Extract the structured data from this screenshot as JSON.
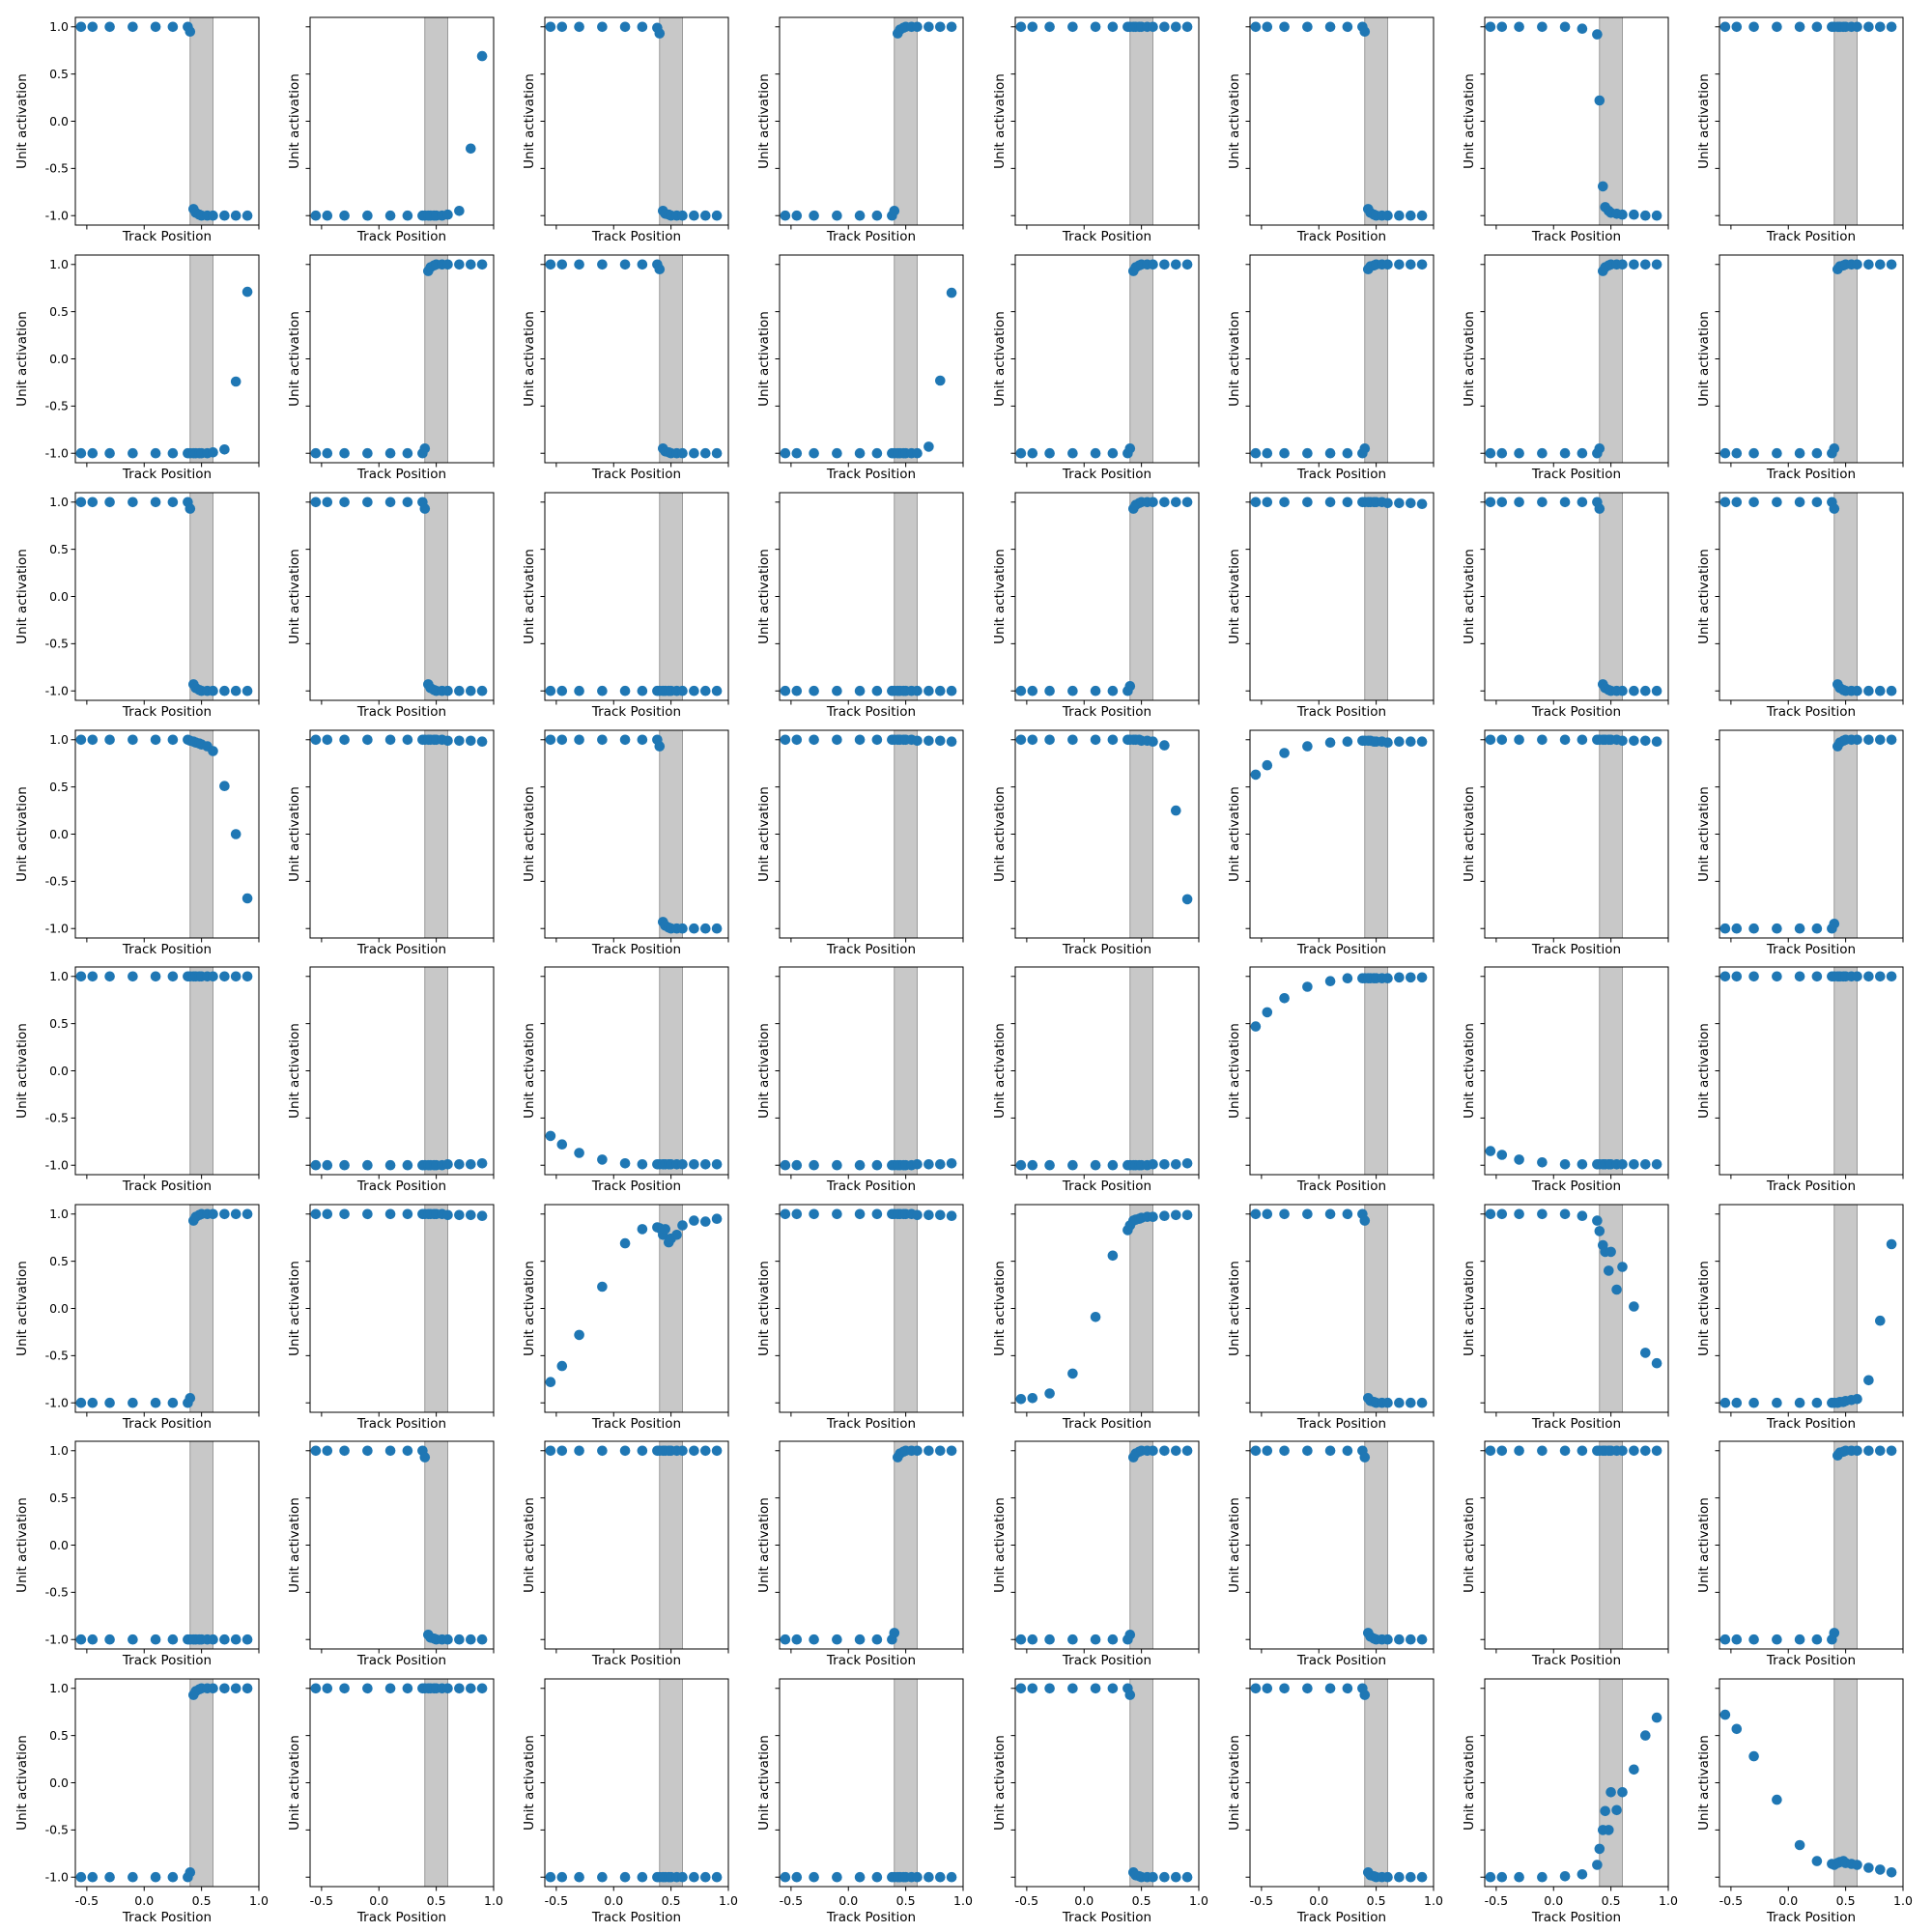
{
  "figure": {
    "rows": 8,
    "cols": 8,
    "sharex": true,
    "sharey": true,
    "marker_color": "#1f77b4",
    "band_color": "#c8c8c8"
  },
  "chart_data": {
    "type": "scatter",
    "xlabel": "Track Position",
    "ylabel": "Unit activation",
    "xlim": [
      -0.6,
      1.0
    ],
    "ylim": [
      -1.1,
      1.1
    ],
    "xticks": [
      -0.5,
      0.0,
      0.5,
      1.0
    ],
    "xtick_labels": [
      "-0.5",
      "0.0",
      "0.5",
      "1.0"
    ],
    "yticks": [
      -1.0,
      -0.5,
      0.0,
      0.5,
      1.0
    ],
    "ytick_labels": [
      "-1.0",
      "-0.5",
      "0.0",
      "0.5",
      "1.0"
    ],
    "shaded_band": [
      0.4,
      0.6
    ],
    "x": [
      -0.55,
      -0.45,
      -0.3,
      -0.1,
      0.1,
      0.25,
      0.38,
      0.4,
      0.43,
      0.45,
      0.48,
      0.5,
      0.55,
      0.6,
      0.7,
      0.8,
      0.9
    ],
    "panels": [
      {
        "y": [
          1,
          1,
          1,
          1,
          1,
          1,
          1,
          0.95,
          -0.93,
          -0.97,
          -0.99,
          -1,
          -1,
          -1,
          -1,
          -1,
          -1
        ]
      },
      {
        "y": [
          -1,
          -1,
          -1,
          -1,
          -1,
          -1,
          -1,
          -1,
          -1,
          -1,
          -1,
          -1,
          -1,
          -0.99,
          -0.95,
          -0.29,
          0.69
        ]
      },
      {
        "y": [
          1,
          1,
          1,
          1,
          1,
          1,
          0.99,
          0.93,
          -0.95,
          -0.98,
          -0.99,
          -1,
          -1,
          -1,
          -1,
          -1,
          -1
        ]
      },
      {
        "y": [
          -1,
          -1,
          -1,
          -1,
          -1,
          -1,
          -1,
          -0.95,
          0.93,
          0.97,
          0.99,
          1,
          1,
          1,
          1,
          1,
          1
        ]
      },
      {
        "y": [
          1,
          1,
          1,
          1,
          1,
          1,
          1,
          1,
          1,
          1,
          1,
          1,
          1,
          1,
          1,
          1,
          1
        ]
      },
      {
        "y": [
          1,
          1,
          1,
          1,
          1,
          1,
          1,
          0.95,
          -0.93,
          -0.97,
          -0.99,
          -1,
          -1,
          -1,
          -1,
          -1,
          -1
        ]
      },
      {
        "y": [
          1,
          1,
          1,
          1,
          1,
          0.98,
          0.92,
          0.22,
          -0.69,
          -0.91,
          -0.95,
          -0.97,
          -0.98,
          -0.99,
          -0.99,
          -1,
          -1
        ]
      },
      {
        "y": [
          1,
          1,
          1,
          1,
          1,
          1,
          1,
          1,
          1,
          1,
          1,
          1,
          1,
          1,
          1,
          1,
          1
        ]
      },
      {
        "y": [
          -1,
          -1,
          -1,
          -1,
          -1,
          -1,
          -1,
          -1,
          -1,
          -1,
          -1,
          -1,
          -1,
          -0.99,
          -0.96,
          -0.24,
          0.71
        ]
      },
      {
        "y": [
          -1,
          -1,
          -1,
          -1,
          -1,
          -1,
          -1,
          -0.95,
          0.93,
          0.97,
          0.99,
          1,
          1,
          1,
          1,
          1,
          1
        ]
      },
      {
        "y": [
          1,
          1,
          1,
          1,
          1,
          1,
          1,
          0.95,
          -0.95,
          -0.98,
          -0.99,
          -1,
          -1,
          -1,
          -1,
          -1,
          -1
        ]
      },
      {
        "y": [
          -1,
          -1,
          -1,
          -1,
          -1,
          -1,
          -1,
          -1,
          -1,
          -1,
          -1,
          -1,
          -1,
          -1,
          -0.93,
          -0.23,
          0.7
        ]
      },
      {
        "y": [
          -1,
          -1,
          -1,
          -1,
          -1,
          -1,
          -1,
          -0.95,
          0.93,
          0.97,
          0.99,
          1,
          1,
          1,
          1,
          1,
          1
        ]
      },
      {
        "y": [
          -1,
          -1,
          -1,
          -1,
          -1,
          -1,
          -1,
          -0.95,
          0.95,
          0.98,
          0.99,
          1,
          1,
          1,
          1,
          1,
          1
        ]
      },
      {
        "y": [
          -1,
          -1,
          -1,
          -1,
          -1,
          -1,
          -1,
          -0.95,
          0.93,
          0.97,
          0.99,
          1,
          1,
          1,
          1,
          1,
          1
        ]
      },
      {
        "y": [
          -1,
          -1,
          -1,
          -1,
          -1,
          -1,
          -1,
          -0.95,
          0.95,
          0.98,
          0.99,
          1,
          1,
          1,
          1,
          1,
          1
        ]
      },
      {
        "y": [
          1,
          1,
          1,
          1,
          1,
          1,
          1,
          0.93,
          -0.93,
          -0.97,
          -0.99,
          -1,
          -1,
          -1,
          -1,
          -1,
          -1
        ]
      },
      {
        "y": [
          1,
          1,
          1,
          1,
          1,
          1,
          1,
          0.93,
          -0.93,
          -0.97,
          -0.99,
          -1,
          -1,
          -1,
          -1,
          -1,
          -1
        ]
      },
      {
        "y": [
          -1,
          -1,
          -1,
          -1,
          -1,
          -1,
          -1,
          -1,
          -1,
          -1,
          -1,
          -1,
          -1,
          -1,
          -1,
          -1,
          -1
        ]
      },
      {
        "y": [
          -1,
          -1,
          -1,
          -1,
          -1,
          -1,
          -1,
          -1,
          -1,
          -1,
          -1,
          -1,
          -1,
          -1,
          -1,
          -1,
          -1
        ]
      },
      {
        "y": [
          -1,
          -1,
          -1,
          -1,
          -1,
          -1,
          -1,
          -0.95,
          0.93,
          0.97,
          0.99,
          1,
          1,
          1,
          1,
          1,
          1
        ]
      },
      {
        "y": [
          1,
          1,
          1,
          1,
          1,
          1,
          1,
          1,
          1,
          1,
          1,
          1,
          1,
          0.99,
          0.99,
          0.99,
          0.98
        ]
      },
      {
        "y": [
          1,
          1,
          1,
          1,
          1,
          1,
          1,
          0.93,
          -0.93,
          -0.97,
          -0.99,
          -1,
          -1,
          -1,
          -1,
          -1,
          -1
        ]
      },
      {
        "y": [
          1,
          1,
          1,
          1,
          1,
          1,
          1,
          0.93,
          -0.93,
          -0.97,
          -0.99,
          -1,
          -1,
          -1,
          -1,
          -1,
          -1
        ]
      },
      {
        "y": [
          1,
          1,
          1,
          1,
          1,
          1,
          1,
          0.99,
          0.98,
          0.97,
          0.96,
          0.95,
          0.93,
          0.88,
          0.51,
          0.0,
          -0.68
        ]
      },
      {
        "y": [
          1,
          1,
          1,
          1,
          1,
          1,
          1,
          1,
          1,
          1,
          1,
          1,
          1,
          0.99,
          0.99,
          0.99,
          0.98
        ]
      },
      {
        "y": [
          1,
          1,
          1,
          1,
          1,
          1,
          1,
          0.93,
          -0.93,
          -0.97,
          -0.99,
          -1,
          -1,
          -1,
          -1,
          -1,
          -1
        ]
      },
      {
        "y": [
          1,
          1,
          1,
          1,
          1,
          1,
          1,
          1,
          1,
          1,
          1,
          1,
          1,
          0.99,
          0.99,
          0.99,
          0.98
        ]
      },
      {
        "y": [
          1,
          1,
          1,
          1,
          1,
          1,
          1,
          1,
          1,
          1,
          1,
          0.99,
          0.99,
          0.98,
          0.94,
          0.25,
          -0.69
        ]
      },
      {
        "y": [
          0.63,
          0.73,
          0.86,
          0.93,
          0.97,
          0.98,
          0.99,
          0.99,
          0.99,
          0.99,
          0.98,
          0.98,
          0.98,
          0.97,
          0.98,
          0.98,
          0.98
        ]
      },
      {
        "y": [
          1,
          1,
          1,
          1,
          1,
          1,
          1,
          1,
          1,
          1,
          1,
          1,
          1,
          0.99,
          0.99,
          0.99,
          0.98
        ]
      },
      {
        "y": [
          -1,
          -1,
          -1,
          -1,
          -1,
          -1,
          -1,
          -0.95,
          0.93,
          0.97,
          0.99,
          1,
          1,
          1,
          1,
          1,
          1
        ]
      },
      {
        "y": [
          1,
          1,
          1,
          1,
          1,
          1,
          1,
          1,
          1,
          1,
          1,
          1,
          1,
          1,
          1,
          1,
          1
        ]
      },
      {
        "y": [
          -1,
          -1,
          -1,
          -1,
          -1,
          -1,
          -1,
          -1,
          -1,
          -1,
          -1,
          -1,
          -1,
          -0.99,
          -0.99,
          -0.99,
          -0.98
        ]
      },
      {
        "y": [
          -0.69,
          -0.78,
          -0.87,
          -0.94,
          -0.98,
          -0.99,
          -0.99,
          -0.99,
          -0.99,
          -0.99,
          -0.99,
          -0.99,
          -0.99,
          -0.99,
          -0.99,
          -0.99,
          -0.99
        ]
      },
      {
        "y": [
          -1,
          -1,
          -1,
          -1,
          -1,
          -1,
          -1,
          -1,
          -1,
          -1,
          -1,
          -1,
          -1,
          -0.99,
          -0.99,
          -0.99,
          -0.98
        ]
      },
      {
        "y": [
          -1,
          -1,
          -1,
          -1,
          -1,
          -1,
          -1,
          -1,
          -1,
          -1,
          -1,
          -1,
          -1,
          -0.99,
          -0.99,
          -0.99,
          -0.98
        ]
      },
      {
        "y": [
          0.47,
          0.62,
          0.77,
          0.89,
          0.95,
          0.98,
          0.98,
          0.98,
          0.98,
          0.98,
          0.98,
          0.98,
          0.98,
          0.98,
          0.99,
          0.99,
          0.99
        ]
      },
      {
        "y": [
          -0.85,
          -0.89,
          -0.94,
          -0.97,
          -0.99,
          -0.99,
          -0.99,
          -0.99,
          -0.99,
          -0.99,
          -0.99,
          -0.99,
          -0.99,
          -0.99,
          -0.99,
          -0.99,
          -0.99
        ]
      },
      {
        "y": [
          1,
          1,
          1,
          1,
          1,
          1,
          1,
          1,
          1,
          1,
          1,
          1,
          1,
          1,
          1,
          1,
          1
        ]
      },
      {
        "y": [
          -1,
          -1,
          -1,
          -1,
          -1,
          -1,
          -1,
          -0.95,
          0.93,
          0.97,
          0.99,
          1,
          1,
          1,
          1,
          1,
          1
        ]
      },
      {
        "y": [
          1,
          1,
          1,
          1,
          1,
          1,
          1,
          1,
          1,
          1,
          1,
          1,
          1,
          0.99,
          0.99,
          0.99,
          0.98
        ]
      },
      {
        "y": [
          -0.78,
          -0.61,
          -0.28,
          0.23,
          0.69,
          0.84,
          0.86,
          0.85,
          0.78,
          0.84,
          0.7,
          0.74,
          0.78,
          0.88,
          0.93,
          0.92,
          0.95
        ]
      },
      {
        "y": [
          1,
          1,
          1,
          1,
          1,
          1,
          1,
          1,
          1,
          1,
          1,
          1,
          1,
          0.99,
          0.99,
          0.99,
          0.98
        ]
      },
      {
        "y": [
          -0.96,
          -0.95,
          -0.9,
          -0.69,
          -0.09,
          0.56,
          0.83,
          0.88,
          0.93,
          0.94,
          0.95,
          0.96,
          0.97,
          0.97,
          0.98,
          0.99,
          0.99
        ]
      },
      {
        "y": [
          1,
          1,
          1,
          1,
          1,
          1,
          1,
          0.93,
          -0.95,
          -0.98,
          -0.99,
          -1,
          -1,
          -1,
          -1,
          -1,
          -1
        ]
      },
      {
        "y": [
          1,
          1,
          1,
          1,
          1,
          0.98,
          0.93,
          0.82,
          0.67,
          0.6,
          0.4,
          0.6,
          0.2,
          0.44,
          0.02,
          -0.47,
          -0.58
        ]
      },
      {
        "y": [
          -1,
          -1,
          -1,
          -1,
          -1,
          -1,
          -1,
          -1,
          -1,
          -0.99,
          -0.99,
          -0.98,
          -0.97,
          -0.96,
          -0.76,
          -0.13,
          0.68
        ]
      },
      {
        "y": [
          -1,
          -1,
          -1,
          -1,
          -1,
          -1,
          -1,
          -1,
          -1,
          -1,
          -1,
          -1,
          -1,
          -1,
          -1,
          -1,
          -1
        ]
      },
      {
        "y": [
          1,
          1,
          1,
          1,
          1,
          1,
          1,
          0.93,
          -0.95,
          -0.98,
          -0.99,
          -1,
          -1,
          -1,
          -1,
          -1,
          -1
        ]
      },
      {
        "y": [
          1,
          1,
          1,
          1,
          1,
          1,
          1,
          1,
          1,
          1,
          1,
          1,
          1,
          1,
          1,
          1,
          1
        ]
      },
      {
        "y": [
          -1,
          -1,
          -1,
          -1,
          -1,
          -1,
          -1,
          -0.93,
          0.93,
          0.97,
          0.99,
          1,
          1,
          1,
          1,
          1,
          1
        ]
      },
      {
        "y": [
          -1,
          -1,
          -1,
          -1,
          -1,
          -1,
          -1,
          -0.95,
          0.93,
          0.97,
          0.99,
          1,
          1,
          1,
          1,
          1,
          1
        ]
      },
      {
        "y": [
          1,
          1,
          1,
          1,
          1,
          1,
          1,
          0.93,
          -0.93,
          -0.97,
          -0.99,
          -1,
          -1,
          -1,
          -1,
          -1,
          -1
        ]
      },
      {
        "y": [
          1,
          1,
          1,
          1,
          1,
          1,
          1,
          1,
          1,
          1,
          1,
          1,
          1,
          1,
          1,
          1,
          1
        ]
      },
      {
        "y": [
          -1,
          -1,
          -1,
          -1,
          -1,
          -1,
          -1,
          -0.93,
          0.95,
          0.98,
          0.99,
          1,
          1,
          1,
          1,
          1,
          1
        ]
      },
      {
        "y": [
          -1,
          -1,
          -1,
          -1,
          -1,
          -1,
          -1,
          -0.95,
          0.93,
          0.97,
          0.99,
          1,
          1,
          1,
          1,
          1,
          1
        ]
      },
      {
        "y": [
          1,
          1,
          1,
          1,
          1,
          1,
          1,
          1,
          1,
          1,
          1,
          1,
          1,
          1,
          1,
          1,
          1
        ]
      },
      {
        "y": [
          -1,
          -1,
          -1,
          -1,
          -1,
          -1,
          -1,
          -1,
          -1,
          -1,
          -1,
          -1,
          -1,
          -1,
          -1,
          -1,
          -1
        ]
      },
      {
        "y": [
          -1,
          -1,
          -1,
          -1,
          -1,
          -1,
          -1,
          -1,
          -1,
          -1,
          -1,
          -1,
          -1,
          -1,
          -1,
          -1,
          -1
        ]
      },
      {
        "y": [
          1,
          1,
          1,
          1,
          1,
          1,
          1,
          0.93,
          -0.95,
          -0.98,
          -0.99,
          -1,
          -1,
          -1,
          -1,
          -1,
          -1
        ]
      },
      {
        "y": [
          1,
          1,
          1,
          1,
          1,
          1,
          1,
          0.93,
          -0.95,
          -0.98,
          -0.99,
          -1,
          -1,
          -1,
          -1,
          -1,
          -1
        ]
      },
      {
        "y": [
          -1,
          -1,
          -1,
          -1,
          -0.99,
          -0.97,
          -0.87,
          -0.7,
          -0.5,
          -0.3,
          -0.5,
          -0.1,
          -0.29,
          -0.1,
          0.14,
          0.5,
          0.69
        ]
      },
      {
        "y": [
          0.72,
          0.57,
          0.28,
          -0.18,
          -0.66,
          -0.83,
          -0.86,
          -0.87,
          -0.85,
          -0.84,
          -0.83,
          -0.85,
          -0.86,
          -0.87,
          -0.9,
          -0.92,
          -0.95
        ]
      }
    ]
  }
}
